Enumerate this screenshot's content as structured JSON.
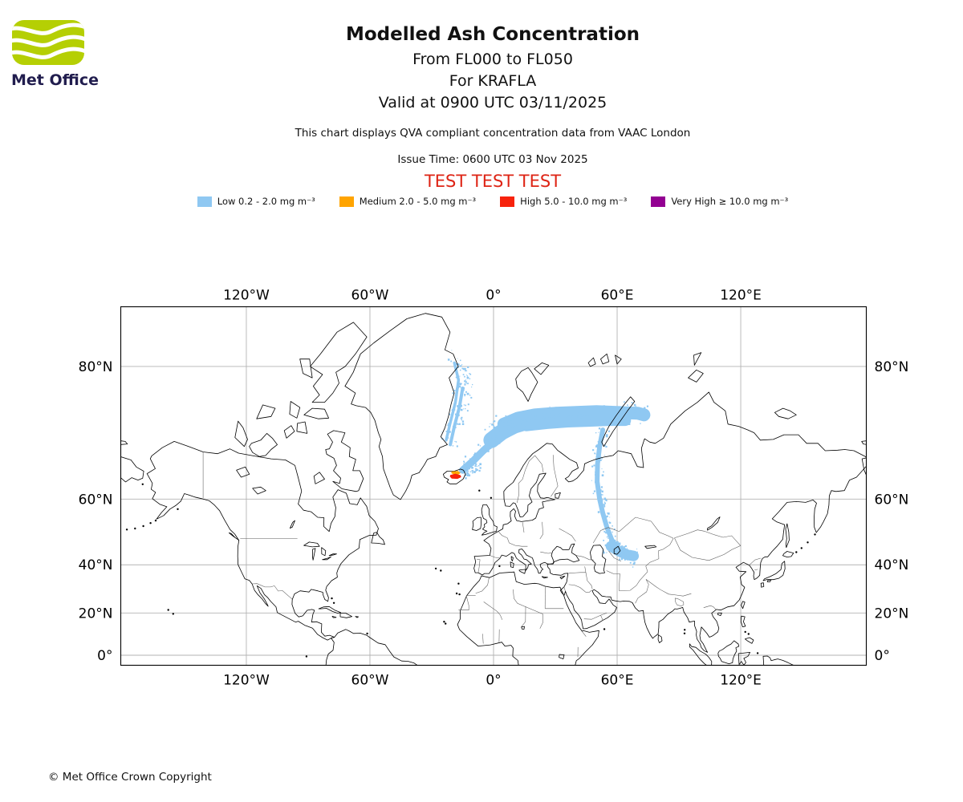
{
  "header": {
    "logo_text": "Met Office",
    "title": "Modelled Ash Concentration",
    "flight_levels": "From FL000 to FL050",
    "volcano": "For KRAFLA",
    "valid": "Valid at 0900 UTC 03/11/2025",
    "qva_note": "This chart displays QVA compliant concentration data from VAAC London",
    "issue_time": "Issue Time: 0600 UTC 03 Nov 2025",
    "test_banner": "TEST TEST TEST"
  },
  "legend": {
    "items": [
      {
        "label": "Low 0.2 - 2.0 mg m⁻³",
        "color": "#8fc8f2"
      },
      {
        "label": "Medium 2.0 - 5.0 mg m⁻³",
        "color": "#ffa400"
      },
      {
        "label": "High 5.0 - 10.0 mg m⁻³",
        "color": "#f7230c"
      },
      {
        "label": "Very High ≥ 10.0 mg m⁻³",
        "color": "#930092"
      }
    ]
  },
  "map": {
    "x_ticks": [
      {
        "label": "120°W",
        "lon": -120
      },
      {
        "label": "60°W",
        "lon": -60
      },
      {
        "label": "0°",
        "lon": 0
      },
      {
        "label": "60°E",
        "lon": 60
      },
      {
        "label": "120°E",
        "lon": 120
      }
    ],
    "y_ticks": [
      {
        "label": "80°N",
        "lat": 80
      },
      {
        "label": "60°N",
        "lat": 60
      },
      {
        "label": "40°N",
        "lat": 40
      },
      {
        "label": "20°N",
        "lat": 20
      },
      {
        "label": "0°",
        "lat": 0
      }
    ],
    "ash": {
      "low_color": "#8fc8f2",
      "strokes": [
        {
          "pts": [
            [
              -15,
              66.3
            ],
            [
              -10,
              68
            ],
            [
              -5,
              69.8
            ],
            [
              0,
              71.3
            ]
          ],
          "w": 9
        },
        {
          "pts": [
            [
              -1,
              71.5
            ],
            [
              4,
              72.7
            ],
            [
              10,
              73.6
            ],
            [
              16,
              74.1
            ]
          ],
          "w": 20
        },
        {
          "pts": [
            [
              5,
              73.8
            ],
            [
              12,
              74.6
            ],
            [
              20,
              75
            ],
            [
              30,
              75.2
            ],
            [
              40,
              75.3
            ],
            [
              50,
              75.4
            ],
            [
              60,
              75.3
            ],
            [
              70,
              75.2
            ],
            [
              73,
              75
            ]
          ],
          "w": 16
        },
        {
          "pts": [
            [
              16,
              73.6
            ],
            [
              26,
              73.9
            ],
            [
              36,
              74.1
            ],
            [
              46,
              74.2
            ],
            [
              56,
              74.3
            ],
            [
              64,
              74.3
            ]
          ],
          "w": 14
        },
        {
          "pts": [
            [
              53,
              73
            ],
            [
              51.5,
              70.5
            ],
            [
              50.5,
              67.5
            ],
            [
              50.3,
              64
            ],
            [
              51.5,
              60
            ],
            [
              53,
              56.5
            ],
            [
              55,
              52.5
            ],
            [
              57.5,
              48.5
            ],
            [
              61,
              45.5
            ],
            [
              65,
              43.5
            ]
          ],
          "w": 6
        },
        {
          "pts": [
            [
              57,
              46.5
            ],
            [
              61,
              44.8
            ],
            [
              65,
              43.6
            ],
            [
              68,
              43.2
            ]
          ],
          "w": 13
        },
        {
          "pts": [
            [
              -21,
              70.8
            ],
            [
              -19,
              73.5
            ],
            [
              -16.5,
              76
            ],
            [
              -15,
              78
            ]
          ],
          "w": 4
        },
        {
          "pts": [
            [
              -23,
              71.5
            ],
            [
              -21,
              74
            ],
            [
              -18.5,
              76.5
            ],
            [
              -17,
              78.8
            ],
            [
              -19,
              80.3
            ]
          ],
          "w": 3.5
        }
      ],
      "speckles": [
        {
          "pts": [
            [
              -22,
              71
            ],
            [
              -20,
              73
            ],
            [
              -18,
              75.5
            ],
            [
              -15,
              77.5
            ],
            [
              -14.5,
              79.5
            ],
            [
              -18,
              80.8
            ]
          ],
          "w": 13,
          "n": 110,
          "seed": 7
        },
        {
          "pts": [
            [
              -16,
              66.3
            ],
            [
              -12,
              67.8
            ],
            [
              -8,
              69.3
            ],
            [
              -3,
              70.8
            ],
            [
              2,
              71.8
            ]
          ],
          "w": 10,
          "n": 70,
          "seed": 13
        },
        {
          "pts": [
            [
              -2,
              73
            ],
            [
              10,
              74.3
            ],
            [
              24,
              74.8
            ],
            [
              38,
              75
            ],
            [
              52,
              75.2
            ],
            [
              66,
              75.2
            ],
            [
              73,
              75.3
            ]
          ],
          "w": 16,
          "n": 160,
          "seed": 29
        },
        {
          "pts": [
            [
              53,
              73
            ],
            [
              51,
              70
            ],
            [
              50,
              67
            ],
            [
              50.5,
              63.5
            ],
            [
              52,
              59.5
            ],
            [
              54,
              55
            ],
            [
              56,
              51
            ],
            [
              59,
              47.5
            ],
            [
              63,
              44.5
            ],
            [
              66,
              43
            ]
          ],
          "w": 10,
          "n": 130,
          "seed": 41
        },
        {
          "pts": [
            [
              56,
              47
            ],
            [
              60,
              45.5
            ],
            [
              64,
              44
            ],
            [
              67,
              43
            ]
          ],
          "w": 14,
          "n": 80,
          "seed": 53
        },
        {
          "pts": [
            [
              -14,
              65.8
            ],
            [
              -10,
              66.5
            ],
            [
              -6,
              67.2
            ]
          ],
          "w": 6,
          "n": 25,
          "seed": 67
        }
      ],
      "source": {
        "red_color": "#f7230c",
        "orange_color": "#ffa400",
        "red_poly": [
          [
            -21,
            65.35
          ],
          [
            -18.5,
            65.6
          ],
          [
            -16,
            65.3
          ],
          [
            -15.7,
            64.9
          ],
          [
            -17.5,
            64.55
          ],
          [
            -20.3,
            64.6
          ],
          [
            -21.2,
            65
          ]
        ],
        "orange_poly": [
          [
            -20.2,
            66.05
          ],
          [
            -17.2,
            66.15
          ],
          [
            -16,
            65.75
          ],
          [
            -17,
            65.45
          ],
          [
            -19.6,
            65.5
          ],
          [
            -20.6,
            65.75
          ]
        ]
      }
    }
  },
  "footer": {
    "copyright": "© Met Office Crown Copyright"
  }
}
